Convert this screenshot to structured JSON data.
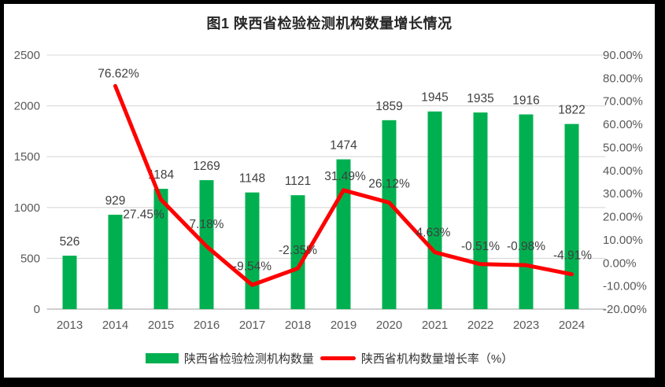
{
  "chart_data": {
    "type": "bar",
    "subtype": "combo-bar-line",
    "title": "图1 陕西省检验检测机构数量增长情况",
    "categories": [
      "2013",
      "2014",
      "2015",
      "2016",
      "2017",
      "2018",
      "2019",
      "2020",
      "2021",
      "2022",
      "2023",
      "2024"
    ],
    "series": [
      {
        "name": "陕西省检验检测机构数量",
        "type": "bar",
        "axis": "left",
        "color": "#00B050",
        "values": [
          526,
          929,
          1184,
          1269,
          1148,
          1121,
          1474,
          1859,
          1945,
          1935,
          1916,
          1822
        ],
        "labels": [
          "526",
          "929",
          "1184",
          "1269",
          "1148",
          "1121",
          "1474",
          "1859",
          "1945",
          "1935",
          "1916",
          "1822"
        ]
      },
      {
        "name": "陕西省机构数量增长率（%）",
        "type": "line",
        "axis": "right",
        "color": "#FF0000",
        "values": [
          null,
          76.62,
          27.45,
          7.18,
          -9.54,
          -2.35,
          31.49,
          26.12,
          4.63,
          -0.51,
          -0.98,
          -4.91
        ],
        "labels": [
          null,
          "76.62%",
          "27.45%",
          "7.18%",
          "-9.54%",
          "-2.35%",
          "31.49%",
          "26.12%",
          "4.63%",
          "-0.51%",
          "-0.98%",
          "-4.91%"
        ]
      }
    ],
    "left_axis": {
      "min": 0,
      "max": 2500,
      "step": 500,
      "ticks": [
        "0",
        "500",
        "1000",
        "1500",
        "2000",
        "2500"
      ]
    },
    "right_axis": {
      "min": -20,
      "max": 90,
      "step": 10,
      "ticks": [
        "90.00%",
        "80.00%",
        "70.00%",
        "60.00%",
        "50.00%",
        "40.00%",
        "30.00%",
        "20.00%",
        "10.00%",
        "0.00%",
        "-10.00%",
        "-20.00%"
      ]
    },
    "grid": true,
    "legend_position": "bottom",
    "colors": {
      "bar": "#00B050",
      "line": "#FF0000",
      "gridline": "#D9D9D9",
      "axis_line": "#BFBFBF",
      "tick_text": "#595959",
      "data_label": "#3F3F3F",
      "title_text": "#262626"
    }
  }
}
